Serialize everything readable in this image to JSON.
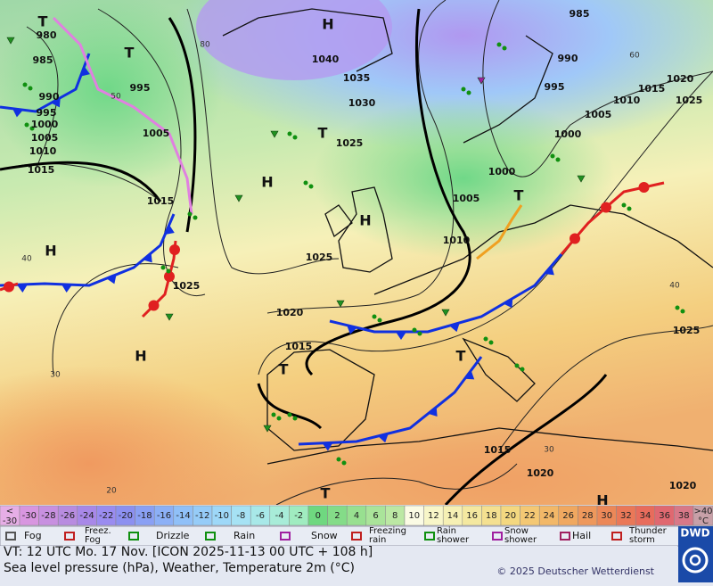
{
  "map": {
    "isobar_labels": [
      "980",
      "985",
      "990",
      "995",
      "1000",
      "1005",
      "1010",
      "1015",
      "995",
      "1005",
      "1015",
      "1025",
      "1020",
      "1015",
      "1025",
      "1025",
      "1030",
      "1035",
      "1040",
      "1000",
      "1005",
      "1010",
      "985",
      "990",
      "995",
      "1000",
      "1005",
      "1010",
      "1015",
      "1020",
      "1025",
      "1025",
      "1015",
      "1020",
      "1020"
    ],
    "centers": [
      "H",
      "H",
      "H",
      "H",
      "H",
      "H",
      "T",
      "T",
      "T",
      "T",
      "T",
      "T",
      "T"
    ],
    "temperature_labels": [
      "80",
      "50",
      "40",
      "30",
      "20",
      "40",
      "30",
      "60"
    ]
  },
  "scale": {
    "low": "<",
    "low_value": "-30",
    "high": ">40",
    "unit": "°C",
    "low_color": "#e6aee6",
    "high_color": "#c8a0a8",
    "values": [
      -30,
      -28,
      -26,
      -24,
      -22,
      -20,
      -18,
      -16,
      -14,
      -12,
      -10,
      -8,
      -6,
      -4,
      -2,
      0,
      2,
      4,
      6,
      8,
      10,
      12,
      14,
      16,
      18,
      20,
      22,
      24,
      26,
      28,
      30,
      32,
      34,
      36,
      38
    ],
    "colors": [
      "#d896e0",
      "#c890e0",
      "#b88ce0",
      "#a888e8",
      "#9a8cf0",
      "#8c90f0",
      "#8aa0f4",
      "#8cb0f6",
      "#90c0f8",
      "#96ccf8",
      "#9ed8f8",
      "#a6e2f4",
      "#a8e8e8",
      "#a8ecd8",
      "#a0ecc0",
      "#6fd880",
      "#84dc88",
      "#98e090",
      "#aae49a",
      "#bce8a4",
      "#fbfbe4",
      "#f8f6c8",
      "#f6f0b4",
      "#f4e8a0",
      "#f4e090",
      "#f4d880",
      "#f4c874",
      "#f2b868",
      "#f0a860",
      "#ee985c",
      "#ec8858",
      "#ea7858",
      "#e86c5c",
      "#e06870",
      "#d87888"
    ]
  },
  "legend": [
    [
      "Fog"
    ],
    [
      "Freez.",
      "Fog"
    ],
    [
      "Drizzle"
    ],
    [
      "Rain"
    ],
    [
      "Snow"
    ],
    [
      "Freezing",
      "rain"
    ],
    [
      "Rain",
      "shower"
    ],
    [
      "Snow",
      "shower"
    ],
    [
      "Hail"
    ],
    [
      "Thunder",
      "storm"
    ]
  ],
  "footer": {
    "valid_time": "VT: 12 UTC Mo.  17 Nov. [ICON 2025-11-13  00 UTC + 108 h]",
    "parameters": "Sea level pressure (hPa), Weather, Temperature 2m (°C)",
    "copyright": "© 2025 Deutscher Wetterdienst"
  },
  "logo": "DWD"
}
